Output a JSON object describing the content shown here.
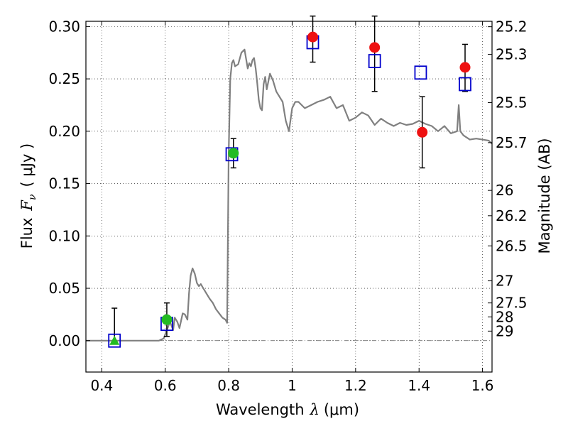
{
  "chart_data": {
    "type": "scatter",
    "xlabel_text": "Wavelength",
    "xlabel_symbol": "λ",
    "xlabel_unit": "(μm)",
    "ylabel_text": "Flux",
    "ylabel_symbol": "F",
    "ylabel_sub": "ν",
    "ylabel_unit": "( μJy )",
    "y2label": "Magnitude (AB)",
    "xlim": [
      0.35,
      1.63
    ],
    "ylim": [
      -0.03,
      0.305
    ],
    "grid": true,
    "xticks": [
      0.4,
      0.6,
      0.8,
      1.0,
      1.2,
      1.4,
      1.6
    ],
    "xtick_labels": [
      "0.4",
      "0.6",
      "0.8",
      "1",
      "1.2",
      "1.4",
      "1.6"
    ],
    "yticks": [
      0.0,
      0.05,
      0.1,
      0.15,
      0.2,
      0.25,
      0.3
    ],
    "ytick_labels": [
      "0.00",
      "0.05",
      "0.10",
      "0.15",
      "0.20",
      "0.25",
      "0.30"
    ],
    "mag_ticks": [
      {
        "label": "25.2",
        "y": 0.2998
      },
      {
        "label": "25.3",
        "y": 0.2734
      },
      {
        "label": "25.5",
        "y": 0.2274
      },
      {
        "label": "25.7",
        "y": 0.1891
      },
      {
        "label": "26",
        "y": 0.1435
      },
      {
        "label": "26.2",
        "y": 0.1193
      },
      {
        "label": "26.5",
        "y": 0.0905
      },
      {
        "label": "27",
        "y": 0.0571
      },
      {
        "label": "27.5",
        "y": 0.036
      },
      {
        "label": "28",
        "y": 0.0227
      },
      {
        "label": "29",
        "y": 0.0091
      }
    ],
    "series": [
      {
        "marker": "line",
        "color": "#808080",
        "x": [
          0.35,
          0.58,
          0.595,
          0.605,
          0.615,
          0.625,
          0.63,
          0.638,
          0.645,
          0.655,
          0.662,
          0.67,
          0.675,
          0.68,
          0.686,
          0.693,
          0.7,
          0.706,
          0.712,
          0.72,
          0.73,
          0.74,
          0.75,
          0.76,
          0.77,
          0.78,
          0.79,
          0.795,
          0.8,
          0.805,
          0.81,
          0.815,
          0.82,
          0.83,
          0.84,
          0.85,
          0.86,
          0.865,
          0.87,
          0.875,
          0.88,
          0.885,
          0.89,
          0.895,
          0.9,
          0.905,
          0.91,
          0.915,
          0.92,
          0.93,
          0.94,
          0.95,
          0.96,
          0.97,
          0.98,
          0.99,
          1.0,
          1.01,
          1.02,
          1.04,
          1.06,
          1.08,
          1.1,
          1.12,
          1.14,
          1.16,
          1.18,
          1.2,
          1.22,
          1.24,
          1.26,
          1.28,
          1.3,
          1.32,
          1.34,
          1.36,
          1.38,
          1.4,
          1.42,
          1.44,
          1.46,
          1.48,
          1.5,
          1.52,
          1.525,
          1.53,
          1.54,
          1.56,
          1.58,
          1.6,
          1.62,
          1.63
        ],
        "y": [
          0.0,
          0.0,
          0.002,
          0.01,
          0.018,
          0.01,
          0.022,
          0.018,
          0.012,
          0.026,
          0.025,
          0.02,
          0.045,
          0.062,
          0.069,
          0.064,
          0.055,
          0.052,
          0.054,
          0.05,
          0.045,
          0.04,
          0.036,
          0.03,
          0.026,
          0.022,
          0.02,
          0.017,
          0.18,
          0.25,
          0.265,
          0.268,
          0.262,
          0.264,
          0.275,
          0.278,
          0.26,
          0.265,
          0.262,
          0.268,
          0.27,
          0.26,
          0.246,
          0.23,
          0.222,
          0.22,
          0.245,
          0.252,
          0.24,
          0.255,
          0.248,
          0.238,
          0.233,
          0.228,
          0.21,
          0.2,
          0.222,
          0.228,
          0.228,
          0.222,
          0.225,
          0.228,
          0.23,
          0.233,
          0.222,
          0.225,
          0.21,
          0.213,
          0.218,
          0.215,
          0.206,
          0.212,
          0.208,
          0.205,
          0.208,
          0.206,
          0.207,
          0.21,
          0.207,
          0.205,
          0.2,
          0.205,
          0.198,
          0.2,
          0.225,
          0.2,
          0.196,
          0.192,
          0.193,
          0.192,
          0.191,
          0.188
        ]
      },
      {
        "marker": "open-square",
        "color": "#0000cc",
        "x": [
          0.44,
          0.605,
          0.81,
          1.065,
          1.26,
          1.405,
          1.545
        ],
        "y": [
          0.0,
          0.016,
          0.178,
          0.285,
          0.267,
          0.256,
          0.245
        ]
      },
      {
        "marker": "circle",
        "color": "#ee1111",
        "x": [
          1.065,
          1.26,
          1.41,
          1.545
        ],
        "y": [
          0.29,
          0.28,
          0.199,
          0.261
        ],
        "yerr": [
          [
            0.266,
            0.31
          ],
          [
            0.238,
            0.31
          ],
          [
            0.165,
            0.233
          ],
          [
            0.238,
            0.283
          ]
        ]
      },
      {
        "marker": "circle",
        "color": "#22bb22",
        "x": [
          0.605,
          0.815
        ],
        "y": [
          0.02,
          0.179
        ],
        "yerr": [
          [
            0.004,
            0.036
          ],
          [
            0.165,
            0.193
          ]
        ]
      },
      {
        "marker": "triangle",
        "color": "#22bb22",
        "x": [
          0.44
        ],
        "y": [
          0.0
        ],
        "yerr": [
          [
            -0.002,
            0.031
          ]
        ]
      }
    ]
  }
}
